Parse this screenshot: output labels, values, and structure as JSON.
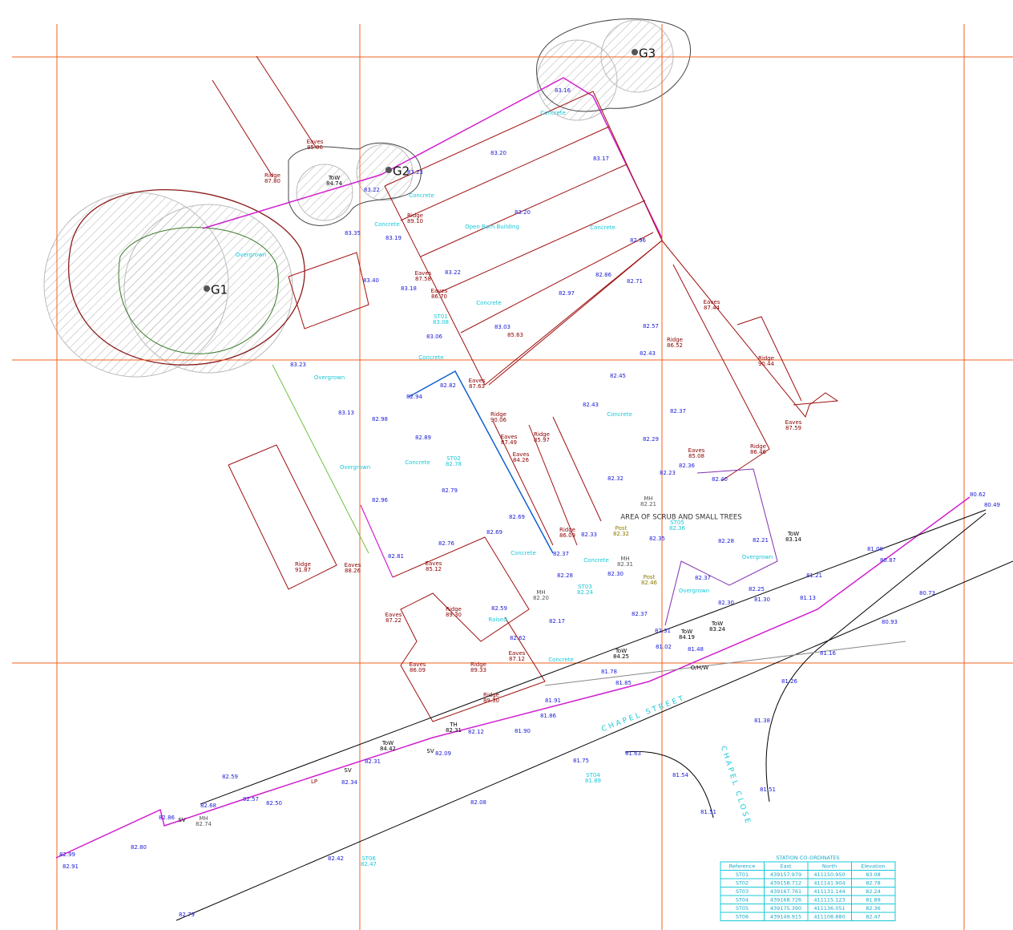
{
  "trees": [
    "G1",
    "G2",
    "G3"
  ],
  "area_label": "AREA OF SCRUB AND SMALL TREES",
  "streets": [
    "CHAPEL STREET",
    "CHAPEL CLOSE"
  ],
  "spot_heights": [
    "83.16",
    "83.20",
    "83.17",
    "83.23",
    "83.22",
    "83.20",
    "83.19",
    "83.35",
    "82.96",
    "83.40",
    "83.18",
    "83.22",
    "82.86",
    "82.71",
    "82.97",
    "83.06",
    "83.03",
    "82.57",
    "82.43",
    "82.45",
    "83.23",
    "83.13",
    "82.98",
    "82.94",
    "82.82",
    "82.43",
    "82.37",
    "82.89",
    "82.29",
    "82.23",
    "82.32",
    "82.36",
    "82.79",
    "82.40",
    "82.96",
    "82.69",
    "82.69",
    "82.33",
    "82.35",
    "82.28",
    "82.21",
    "82.81",
    "82.76",
    "82.37",
    "82.30",
    "82.28",
    "82.37",
    "82.59",
    "82.17",
    "82.37",
    "81.21",
    "81.00",
    "80.87",
    "81.13",
    "81.30",
    "82.25",
    "82.30",
    "82.62",
    "82.31",
    "81.48",
    "81.02",
    "81.78",
    "81.85",
    "81.91",
    "81.86",
    "82.12",
    "82.09",
    "82.31",
    "82.34",
    "82.50",
    "82.57",
    "82.68",
    "82.86",
    "82.80",
    "82.99",
    "82.91",
    "82.08",
    "81.75",
    "81.63",
    "81.54",
    "81.51",
    "81.51",
    "81.38",
    "81.26",
    "81.16",
    "80.93",
    "80.73",
    "80.49",
    "80.62",
    "82.42",
    "82.79",
    "82.59",
    "81.90",
    "85.63"
  ],
  "building_levels": [
    [
      "Eaves",
      "85.96"
    ],
    [
      "Ridge",
      "87.80"
    ],
    [
      "Ridge",
      "89.10"
    ],
    [
      "Eaves",
      "87.58"
    ],
    [
      "Eaves",
      "86.70"
    ],
    [
      "Eaves",
      "87.44"
    ],
    [
      "Ridge",
      "86.52"
    ],
    [
      "Ridge",
      "90.44"
    ],
    [
      "Eaves",
      "87.63"
    ],
    [
      "Ridge",
      "90.06"
    ],
    [
      "Eaves",
      "87.59"
    ],
    [
      "Eaves",
      "87.49"
    ],
    [
      "Ridge",
      "85.97"
    ],
    [
      "Eaves",
      "84.26"
    ],
    [
      "Eaves",
      "85.08"
    ],
    [
      "Ridge",
      "86.46"
    ],
    [
      "Ridge",
      "86.09"
    ],
    [
      "Ridge",
      "91.87"
    ],
    [
      "Eaves",
      "88.26"
    ],
    [
      "Eaves",
      "85.12"
    ],
    [
      "Ridge",
      "89.30"
    ],
    [
      "Eaves",
      "87.22"
    ],
    [
      "Eaves",
      "87.12"
    ],
    [
      "Ridge",
      "89.33"
    ],
    [
      "Eaves",
      "86.09"
    ],
    [
      "Ridge",
      "89.30"
    ]
  ],
  "wall_levels": [
    [
      "ToW",
      "84.74"
    ],
    [
      "ToW",
      "84.42"
    ],
    [
      "TH",
      "82.31"
    ],
    [
      "ToW",
      "83.14"
    ],
    [
      "ToW",
      "83.24"
    ],
    [
      "ToW",
      "84.19"
    ],
    [
      "ToW",
      "84.25"
    ]
  ],
  "surface_notes": [
    "Concrete",
    "Concrete",
    "Concrete",
    "Open Barn Building",
    "Concrete",
    "Concrete",
    "Concrete",
    "Overgrown",
    "Concrete",
    "Concrete",
    "Overgrown",
    "Concrete",
    "Concrete",
    "Overgrown",
    "Overgrown",
    "Concrete",
    "Raised",
    "Overgrown"
  ],
  "stations": [
    [
      "ST01",
      "83.08"
    ],
    [
      "ST02",
      "82.78"
    ],
    [
      "ST03",
      "82.24"
    ],
    [
      "ST04",
      "81.89"
    ],
    [
      "ST05",
      "82.36"
    ],
    [
      "ST06",
      "82.47"
    ]
  ],
  "manholes": [
    [
      "MH",
      "82.20"
    ],
    [
      "MH",
      "82.21"
    ],
    [
      "MH",
      "82.31"
    ],
    [
      "MH",
      "82.74"
    ]
  ],
  "posts": [
    [
      "Post",
      "82.32"
    ],
    [
      "Post",
      "82.46"
    ]
  ],
  "misc": [
    "SV",
    "SV",
    "SV",
    "LP",
    "O/H/W"
  ],
  "table": {
    "title": "STATION CO-ORDINATES",
    "header": [
      "Reference",
      "East",
      "North",
      "Elevation"
    ],
    "rows": [
      [
        "ST01",
        "439157.979",
        "411150.950",
        "83.08"
      ],
      [
        "ST02",
        "439158.712",
        "411141.904",
        "82.78"
      ],
      [
        "ST03",
        "439167.761",
        "411131.144",
        "82.24"
      ],
      [
        "ST04",
        "439168.726",
        "411115.123",
        "81.89"
      ],
      [
        "ST05",
        "439175.390",
        "411136.051",
        "82.36"
      ],
      [
        "ST06",
        "439149.915",
        "411108.880",
        "82.47"
      ]
    ]
  }
}
